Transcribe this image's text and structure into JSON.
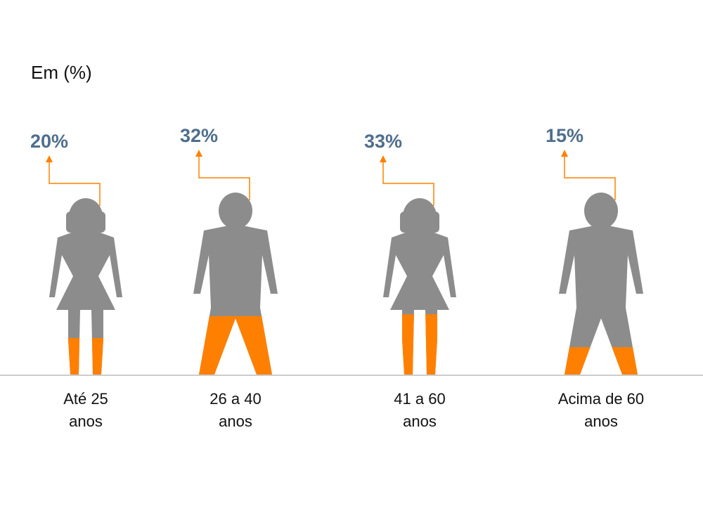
{
  "chart_data": {
    "type": "pictograph",
    "title": "Em (%)",
    "categories": [
      "Até 25\nanos",
      "26 a 40\nanos",
      "41 a 60\nanos",
      "Acima de 60\nanos"
    ],
    "values": [
      20,
      32,
      33,
      15
    ],
    "value_labels": [
      "20%",
      "32%",
      "33%",
      "15%"
    ],
    "ylim": [
      0,
      100
    ],
    "color": "#ff8000",
    "base_color": "#8c8c8c",
    "label_color": "#4f6e8c"
  }
}
